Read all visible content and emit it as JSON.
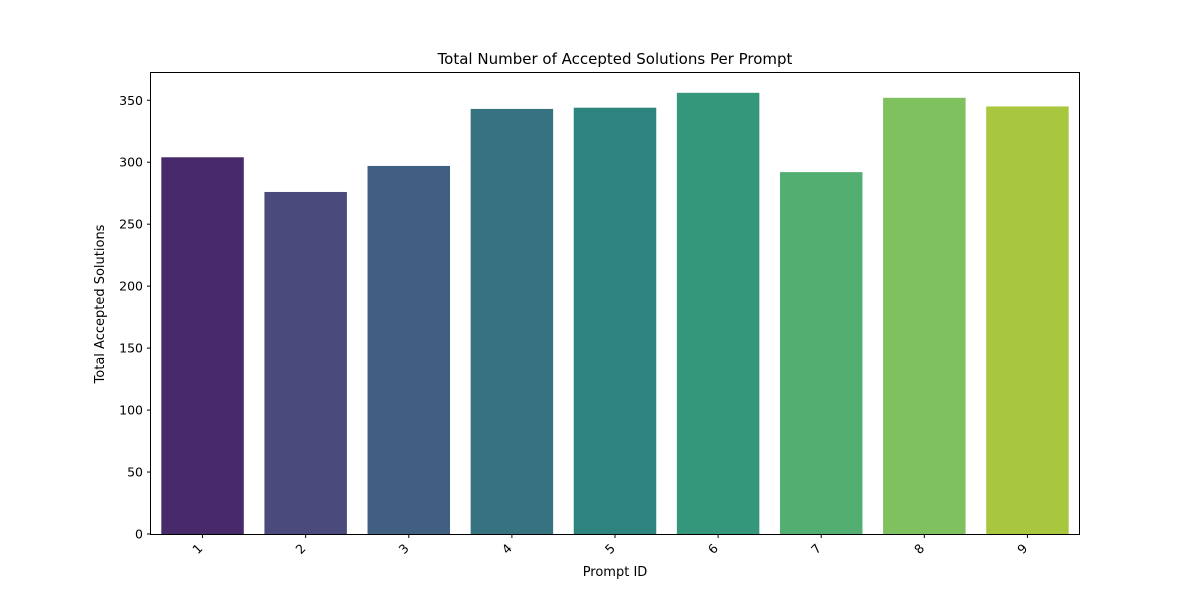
{
  "chart_data": {
    "type": "bar",
    "title": "Total Number of Accepted Solutions Per Prompt",
    "xlabel": "Prompt ID",
    "ylabel": "Total Accepted Solutions",
    "categories": [
      "1",
      "2",
      "3",
      "4",
      "5",
      "6",
      "7",
      "8",
      "9"
    ],
    "values": [
      304,
      276,
      297,
      343,
      344,
      356,
      292,
      352,
      345
    ],
    "colors": [
      "#482a6b",
      "#4a4b7c",
      "#415f81",
      "#377280",
      "#2d847e",
      "#34977b",
      "#52ae71",
      "#80c15f",
      "#a9c63f"
    ],
    "ylim": [
      0,
      372
    ],
    "yticks": [
      0,
      50,
      100,
      150,
      200,
      250,
      300,
      350
    ],
    "grid": false,
    "legend": "none"
  }
}
